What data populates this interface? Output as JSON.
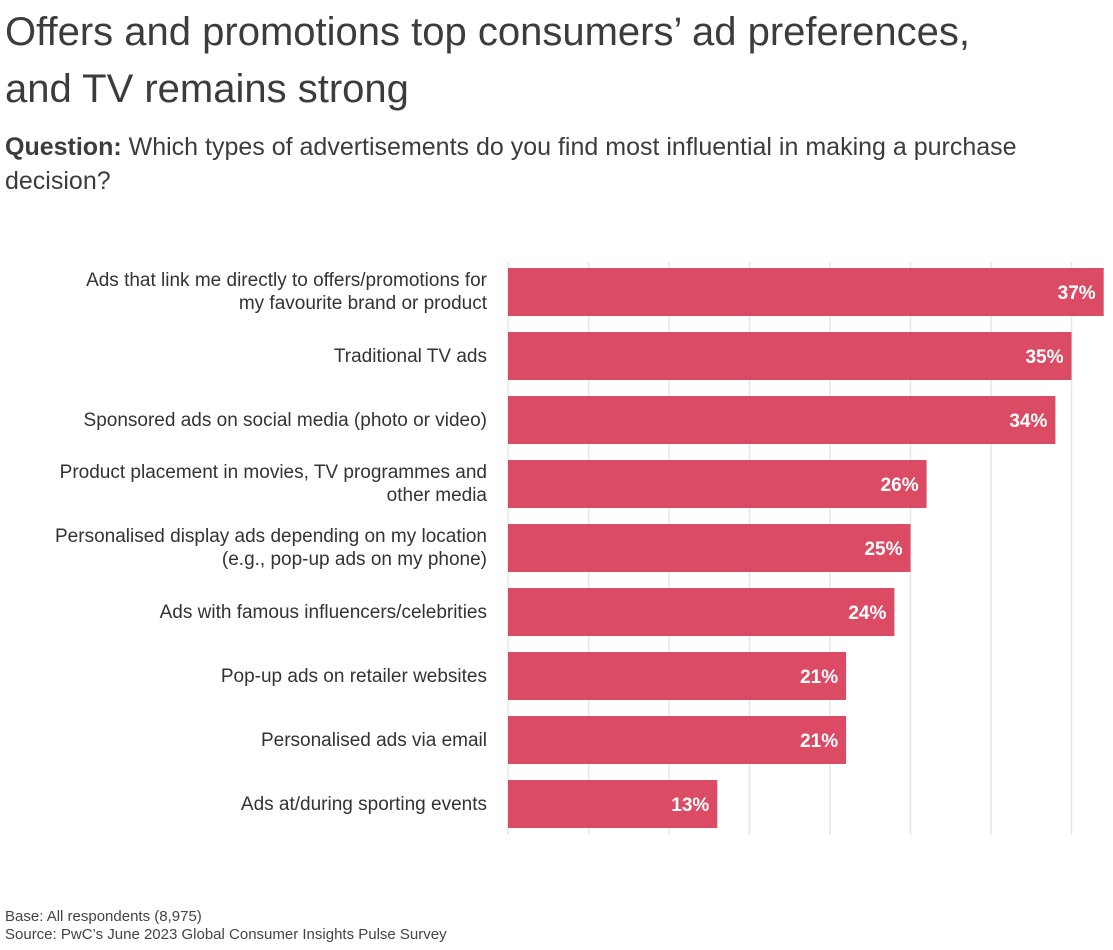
{
  "title_lines": [
    "Offers and promotions top consumers’ ad preferences,",
    "and TV remains strong"
  ],
  "subtitle": {
    "prefix": "Question:",
    "text": " Which types of advertisements do you find most influential in making a purchase decision?"
  },
  "colors": {
    "bar": "#db4c64",
    "grid": "#e6e6e6",
    "value_text": "#ffffff"
  },
  "chart_data": {
    "type": "bar",
    "orientation": "horizontal",
    "categories": [
      [
        "Ads that link me directly to offers/promotions for",
        "my favourite brand or product"
      ],
      [
        "Traditional TV ads"
      ],
      [
        "Sponsored ads on social media (photo or video)"
      ],
      [
        "Product placement in movies, TV programmes and",
        "other media"
      ],
      [
        "Personalised display ads depending on my location",
        "(e.g., pop-up ads on my phone)"
      ],
      [
        "Ads with famous influencers/celebrities"
      ],
      [
        "Pop-up ads on retailer websites"
      ],
      [
        "Personalised ads via email"
      ],
      [
        "Ads at/during sporting events"
      ]
    ],
    "values": [
      37,
      35,
      34,
      26,
      25,
      24,
      21,
      21,
      13
    ],
    "value_labels": [
      "37%",
      "35%",
      "34%",
      "26%",
      "25%",
      "24%",
      "21%",
      "21%",
      "13%"
    ],
    "xlim": [
      0,
      37
    ],
    "grid_step": 5,
    "grid": true,
    "xlabel": "",
    "ylabel": ""
  },
  "footer": {
    "base": "Base: All respondents (8,975)",
    "source": "Source: PwC’s June 2023 Global Consumer Insights Pulse Survey"
  }
}
